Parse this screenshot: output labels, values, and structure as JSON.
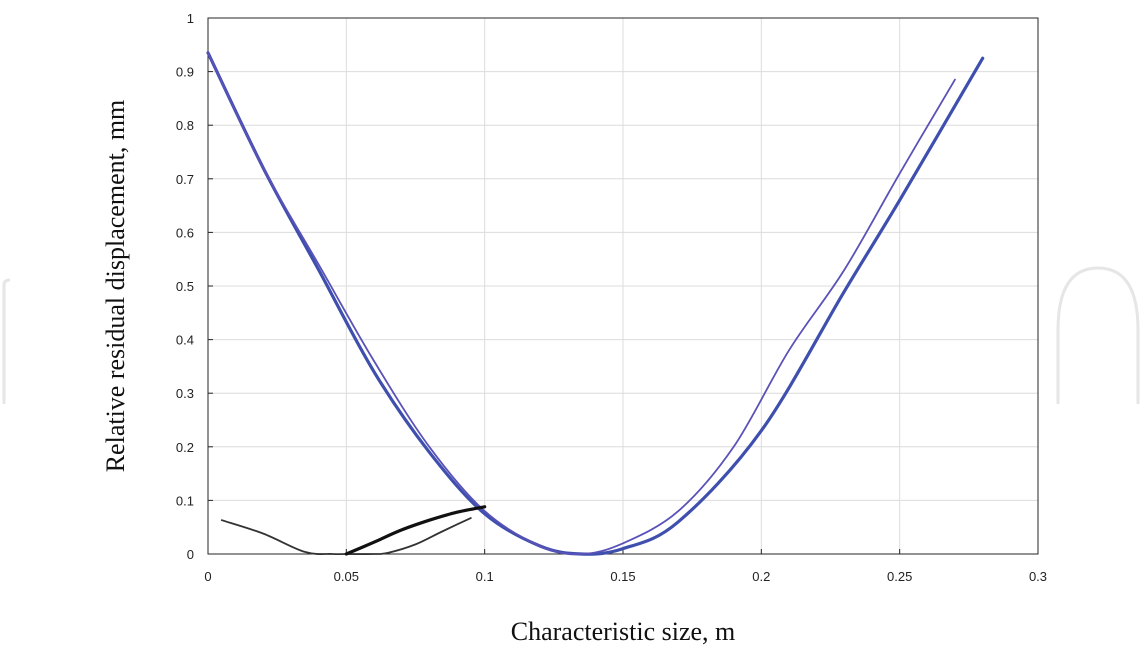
{
  "chart_data": {
    "type": "line",
    "title": "",
    "xlabel": "Characteristic size, m",
    "ylabel": "Relative residual displacement, mm",
    "xlim": [
      0,
      0.3
    ],
    "ylim": [
      0,
      1
    ],
    "x_ticks": [
      "0",
      "0.05",
      "0.1",
      "0.15",
      "0.2",
      "0.25",
      "0.3"
    ],
    "y_ticks": [
      "0",
      "0.1",
      "0.2",
      "0.3",
      "0.4",
      "0.5",
      "0.6",
      "0.7",
      "0.8",
      "0.9",
      "1"
    ],
    "grid": true,
    "legend": "none",
    "series": [
      {
        "color": "#3f4fae",
        "line": "thick",
        "points": [
          [
            0.0,
            0.935
          ],
          [
            0.02,
            0.72
          ],
          [
            0.04,
            0.53
          ],
          [
            0.06,
            0.34
          ],
          [
            0.08,
            0.19
          ],
          [
            0.1,
            0.075
          ],
          [
            0.12,
            0.015
          ],
          [
            0.135,
            0.0
          ],
          [
            0.15,
            0.01
          ],
          [
            0.17,
            0.06
          ],
          [
            0.2,
            0.23
          ],
          [
            0.23,
            0.49
          ],
          [
            0.25,
            0.66
          ],
          [
            0.28,
            0.925
          ]
        ]
      },
      {
        "color": "#5a52b8",
        "line": "thin",
        "points": [
          [
            0.0,
            0.935
          ],
          [
            0.02,
            0.72
          ],
          [
            0.04,
            0.54
          ],
          [
            0.06,
            0.36
          ],
          [
            0.08,
            0.2
          ],
          [
            0.1,
            0.08
          ],
          [
            0.12,
            0.015
          ],
          [
            0.135,
            0.0
          ],
          [
            0.15,
            0.02
          ],
          [
            0.17,
            0.08
          ],
          [
            0.19,
            0.2
          ],
          [
            0.21,
            0.38
          ],
          [
            0.23,
            0.53
          ],
          [
            0.25,
            0.71
          ],
          [
            0.27,
            0.885
          ]
        ]
      },
      {
        "color": "#333333",
        "line": "thin",
        "points": [
          [
            0.005,
            0.063
          ],
          [
            0.02,
            0.038
          ],
          [
            0.035,
            0.004
          ],
          [
            0.045,
            0.0
          ],
          [
            0.05,
            0.0
          ],
          [
            0.06,
            0.0
          ],
          [
            0.065,
            0.002
          ],
          [
            0.075,
            0.018
          ],
          [
            0.085,
            0.043
          ],
          [
            0.095,
            0.067
          ]
        ]
      },
      {
        "color": "#111111",
        "line": "thick",
        "points": [
          [
            0.05,
            0.0
          ],
          [
            0.06,
            0.022
          ],
          [
            0.07,
            0.045
          ],
          [
            0.08,
            0.063
          ],
          [
            0.09,
            0.078
          ],
          [
            0.1,
            0.088
          ]
        ]
      }
    ]
  }
}
